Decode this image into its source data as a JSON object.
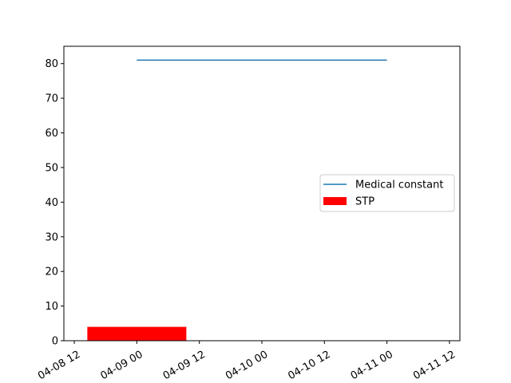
{
  "chart_data": {
    "type": "line",
    "x_axis": {
      "type": "datetime",
      "range": [
        "2024-04-08T10:00",
        "2024-04-11T14:00"
      ],
      "ticks": [
        {
          "value": "2024-04-08T12:00",
          "label": "04-08 12"
        },
        {
          "value": "2024-04-09T00:00",
          "label": "04-09 00"
        },
        {
          "value": "2024-04-09T12:00",
          "label": "04-09 12"
        },
        {
          "value": "2024-04-10T00:00",
          "label": "04-10 00"
        },
        {
          "value": "2024-04-10T12:00",
          "label": "04-10 12"
        },
        {
          "value": "2024-04-11T00:00",
          "label": "04-11 00"
        },
        {
          "value": "2024-04-11T12:00",
          "label": "04-11 12"
        }
      ]
    },
    "y_axis": {
      "ylim": [
        0,
        85
      ],
      "ticks": [
        0,
        10,
        20,
        30,
        40,
        50,
        60,
        70,
        80
      ]
    },
    "series": [
      {
        "name": "Medical constant",
        "type": "line",
        "color": "#1f77b4",
        "points": [
          {
            "x": "2024-04-09T00:00",
            "y": 81
          },
          {
            "x": "2024-04-11T00:00",
            "y": 81
          }
        ]
      },
      {
        "name": "STP",
        "type": "bar",
        "color": "#ff0000",
        "bars": [
          {
            "x_start": "2024-04-08T14:30",
            "x_end": "2024-04-09T09:30",
            "y": 4
          }
        ]
      }
    ],
    "legend": {
      "placement": "center-right"
    },
    "grid": false
  }
}
